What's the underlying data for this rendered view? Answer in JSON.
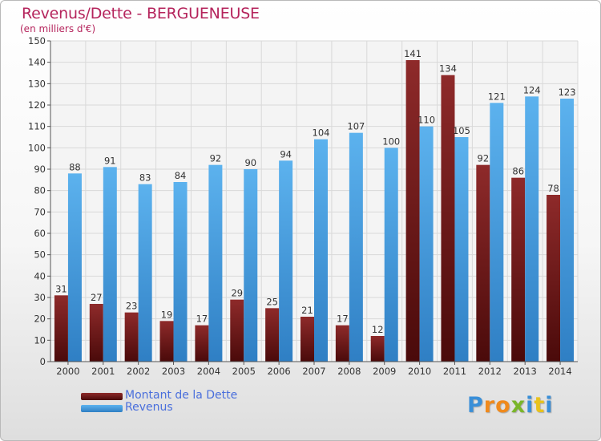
{
  "title": "Revenus/Dette - BERGUENEUSE",
  "subtitle": "(en milliers d'€)",
  "logo": "Proxiti",
  "colors": {
    "title": "#b5245c",
    "dette": "#7a1b1b",
    "revenus": "#4a9fe0",
    "legend_text": "#4a6fdc"
  },
  "chart_data": {
    "type": "bar",
    "title": "Revenus/Dette - BERGUENEUSE",
    "subtitle": "(en milliers d'€)",
    "xlabel": "",
    "ylabel": "",
    "ylim": [
      0,
      150
    ],
    "ytick_step": 10,
    "grid": true,
    "legend_position": "bottom-left",
    "categories": [
      "2000",
      "2001",
      "2002",
      "2003",
      "2004",
      "2005",
      "2006",
      "2007",
      "2008",
      "2009",
      "2010",
      "2011",
      "2012",
      "2013",
      "2014"
    ],
    "series": [
      {
        "name": "Montant de la Dette",
        "color": "#7a1b1b",
        "values": [
          31,
          27,
          23,
          19,
          17,
          29,
          25,
          21,
          17,
          12,
          141,
          134,
          92,
          86,
          78
        ]
      },
      {
        "name": "Revenus",
        "color": "#4a9fe0",
        "values": [
          88,
          91,
          83,
          84,
          92,
          90,
          94,
          104,
          107,
          100,
          110,
          105,
          121,
          124,
          123
        ]
      }
    ]
  }
}
